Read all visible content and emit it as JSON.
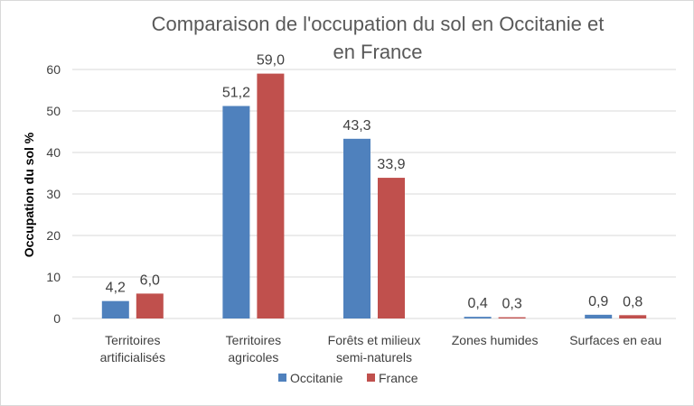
{
  "chart_data": {
    "type": "bar",
    "title_lines": [
      "Comparaison de l'occupation du sol en Occitanie et",
      "en France"
    ],
    "ylabel": "Occupation du sol %",
    "xlabel": "",
    "ylim": [
      0,
      60
    ],
    "yticks": [
      "0",
      "10",
      "20",
      "30",
      "40",
      "50",
      "60"
    ],
    "ytick_values": [
      0,
      10,
      20,
      30,
      40,
      50,
      60
    ],
    "grid": true,
    "legend_position": "bottom",
    "categories": [
      [
        "Territoires",
        "artificialisés"
      ],
      [
        "Territoires",
        "agricoles"
      ],
      [
        "Forêts et milieux",
        "semi-naturels"
      ],
      [
        "Zones humides"
      ],
      [
        "Surfaces en eau"
      ]
    ],
    "series": [
      {
        "name": "Occitanie",
        "color": "#4f81bd",
        "values": [
          4.2,
          51.2,
          43.3,
          0.4,
          0.9
        ],
        "labels": [
          "4,2",
          "51,2",
          "43,3",
          "0,4",
          "0,9"
        ]
      },
      {
        "name": "France",
        "color": "#c0504d",
        "values": [
          6.0,
          59.0,
          33.9,
          0.3,
          0.8
        ],
        "labels": [
          "6,0",
          "59,0",
          "33,9",
          "0,3",
          "0,8"
        ]
      }
    ]
  }
}
